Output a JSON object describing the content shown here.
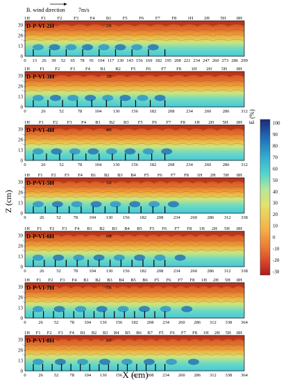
{
  "header": {
    "label": "B.  wind direction",
    "speed": "7m/s"
  },
  "colorbar": {
    "label": "E (%)",
    "ticks": [
      "100",
      "90",
      "80",
      "70",
      "60",
      "50",
      "40",
      "30",
      "20",
      "10",
      "0",
      "-10",
      "-20",
      "-30"
    ],
    "colors": [
      "#1c2a78",
      "#1f4aa0",
      "#1f6fb8",
      "#2b93c8",
      "#35b0d2",
      "#3fc7d6",
      "#52d6cf",
      "#7fe0bf",
      "#b4e79a",
      "#e3e26a",
      "#f3b347",
      "#ec7b34",
      "#d6432a",
      "#a81e1e"
    ]
  },
  "chart_data": {
    "type": "heatmap",
    "xlabel": "X (cm)",
    "ylabel": "Z (cm)",
    "z_ticks": [
      "39",
      "26",
      "13",
      "0"
    ],
    "panels": [
      {
        "title": "D-P-VI-2H",
        "subtitle": "2H",
        "top_labels": [
          "1H",
          "F1",
          "F2",
          "F3",
          "F4",
          "B1",
          "F5",
          "F6",
          "F7",
          "F8",
          "1H",
          "2H",
          "5H",
          "8H"
        ],
        "x_ticks": [
          "0",
          "13",
          "26",
          "39",
          "52",
          "65",
          "78",
          "91",
          "104",
          "117",
          "130",
          "143",
          "156",
          "169",
          "182",
          "195",
          "208",
          "221",
          "234",
          "247",
          "260",
          "273",
          "286",
          "299"
        ]
      },
      {
        "title": "D-P-VI-3H",
        "subtitle": "3H",
        "top_labels": [
          "1H",
          "F1",
          "F2",
          "F3",
          "F4",
          "B1",
          "B2",
          "F5",
          "F6",
          "F7",
          "F8",
          "1H",
          "2H",
          "5H",
          "8H"
        ],
        "x_ticks": [
          "0",
          "26",
          "52",
          "78",
          "104",
          "130",
          "156",
          "182",
          "208",
          "234",
          "260",
          "286",
          "312"
        ]
      },
      {
        "title": "D-P-VI-4H",
        "subtitle": "4H",
        "top_labels": [
          "1H",
          "F1",
          "F2",
          "F3",
          "F4",
          "B1",
          "B2",
          "B3",
          "F5",
          "F6",
          "F7",
          "F8",
          "1H",
          "2H",
          "5H",
          "8H"
        ],
        "x_ticks": [
          "0",
          "26",
          "52",
          "78",
          "104",
          "130",
          "156",
          "182",
          "208",
          "234",
          "260",
          "286",
          "312"
        ]
      },
      {
        "title": "D-P-VI-5H",
        "subtitle": "5H",
        "top_labels": [
          "1H",
          "F1",
          "F2",
          "F3",
          "F4",
          "B1",
          "B2",
          "B3",
          "B4",
          "F5",
          "F6",
          "F7",
          "F8",
          "1H",
          "2H",
          "5H",
          "8H"
        ],
        "x_ticks": [
          "0",
          "26",
          "52",
          "78",
          "104",
          "130",
          "156",
          "182",
          "208",
          "234",
          "260",
          "286",
          "312",
          "338"
        ]
      },
      {
        "title": "D-P-VI-6H",
        "subtitle": "6H",
        "top_labels": [
          "1H",
          "F1",
          "F2",
          "F3",
          "F4",
          "B1",
          "B2",
          "B3",
          "B4",
          "B5",
          "F5",
          "F6",
          "F7",
          "F8",
          "1H",
          "2H",
          "5H",
          "8H"
        ],
        "x_ticks": [
          "0",
          "26",
          "52",
          "78",
          "104",
          "130",
          "156",
          "182",
          "208",
          "234",
          "260",
          "286",
          "312",
          "338"
        ]
      },
      {
        "title": "D-P-VI-7H",
        "subtitle": "7H",
        "top_labels": [
          "1H",
          "F1",
          "F2",
          "F3",
          "F4",
          "B1",
          "B2",
          "B3",
          "B4",
          "B5",
          "B6",
          "F5",
          "F6",
          "F7",
          "F8",
          "1H",
          "2H",
          "5H",
          "8H"
        ],
        "x_ticks": [
          "0",
          "26",
          "52",
          "78",
          "104",
          "130",
          "156",
          "182",
          "208",
          "234",
          "260",
          "286",
          "312",
          "338",
          "364"
        ]
      },
      {
        "title": "D-P-VI-8H",
        "subtitle": "8H",
        "top_labels": [
          "1H",
          "F1",
          "F2",
          "F3",
          "F4",
          "B1",
          "B2",
          "B3",
          "B4",
          "B5",
          "B6",
          "B7",
          "F5",
          "F6",
          "F7",
          "F8",
          "1H",
          "2H",
          "5H",
          "8H"
        ],
        "x_ticks": [
          "0",
          "26",
          "52",
          "78",
          "104",
          "130",
          "156",
          "182",
          "208",
          "234",
          "260",
          "286",
          "312",
          "338",
          "364"
        ]
      }
    ]
  }
}
